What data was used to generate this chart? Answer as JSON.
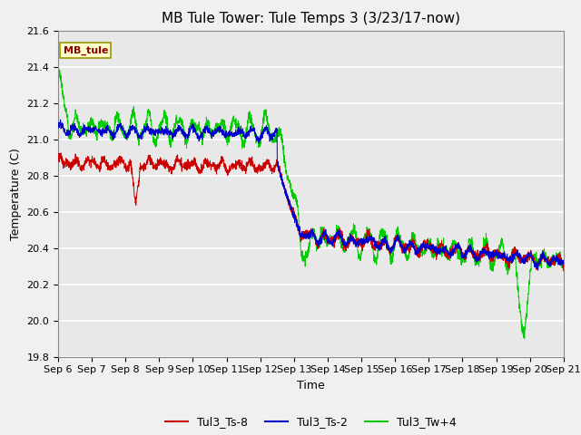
{
  "title": "MB Tule Tower: Tule Temps 3 (3/23/17-now)",
  "xlabel": "Time",
  "ylabel": "Temperature (C)",
  "ylim": [
    19.8,
    21.6
  ],
  "xlim": [
    0,
    15
  ],
  "yticks": [
    19.8,
    20.0,
    20.2,
    20.4,
    20.6,
    20.8,
    21.0,
    21.2,
    21.4,
    21.6
  ],
  "xtick_labels": [
    "Sep 6",
    "Sep 7",
    "Sep 8",
    "Sep 9",
    "Sep 10",
    "Sep 11",
    "Sep 12",
    "Sep 13",
    "Sep 14",
    "Sep 15",
    "Sep 16",
    "Sep 17",
    "Sep 18",
    "Sep 19",
    "Sep 20",
    "Sep 21"
  ],
  "xtick_positions": [
    0,
    1,
    2,
    3,
    4,
    5,
    6,
    7,
    8,
    9,
    10,
    11,
    12,
    13,
    14,
    15
  ],
  "color_red": "#cc0000",
  "color_blue": "#0000cc",
  "color_green": "#00cc00",
  "legend_labels": [
    "Tul3_Ts-8",
    "Tul3_Ts-2",
    "Tul3_Tw+4"
  ],
  "annotation_text": "MB_tule",
  "background_color": "#e8e8e8",
  "plot_bg_color": "#e8e8e8",
  "grid_color": "white",
  "title_fontsize": 11,
  "axis_label_fontsize": 9,
  "tick_fontsize": 8
}
